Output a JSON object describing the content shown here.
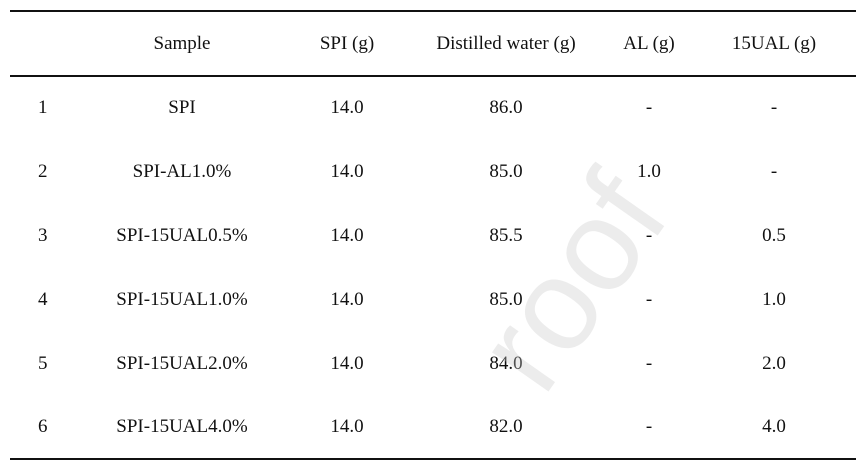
{
  "table": {
    "headers": [
      "",
      "Sample",
      "SPI (g)",
      "Distilled water (g)",
      "AL (g)",
      "15UAL (g)"
    ],
    "rows": [
      [
        "1",
        "SPI",
        "14.0",
        "86.0",
        "-",
        "-"
      ],
      [
        "2",
        "SPI-AL1.0%",
        "14.0",
        "85.0",
        "1.0",
        "-"
      ],
      [
        "3",
        "SPI-15UAL0.5%",
        "14.0",
        "85.5",
        "-",
        "0.5"
      ],
      [
        "4",
        "SPI-15UAL1.0%",
        "14.0",
        "85.0",
        "-",
        "1.0"
      ],
      [
        "5",
        "SPI-15UAL2.0%",
        "14.0",
        "84.0",
        "-",
        "2.0"
      ],
      [
        "6",
        "SPI-15UAL4.0%",
        "14.0",
        "82.0",
        "-",
        "4.0"
      ]
    ]
  },
  "watermark": "roof"
}
